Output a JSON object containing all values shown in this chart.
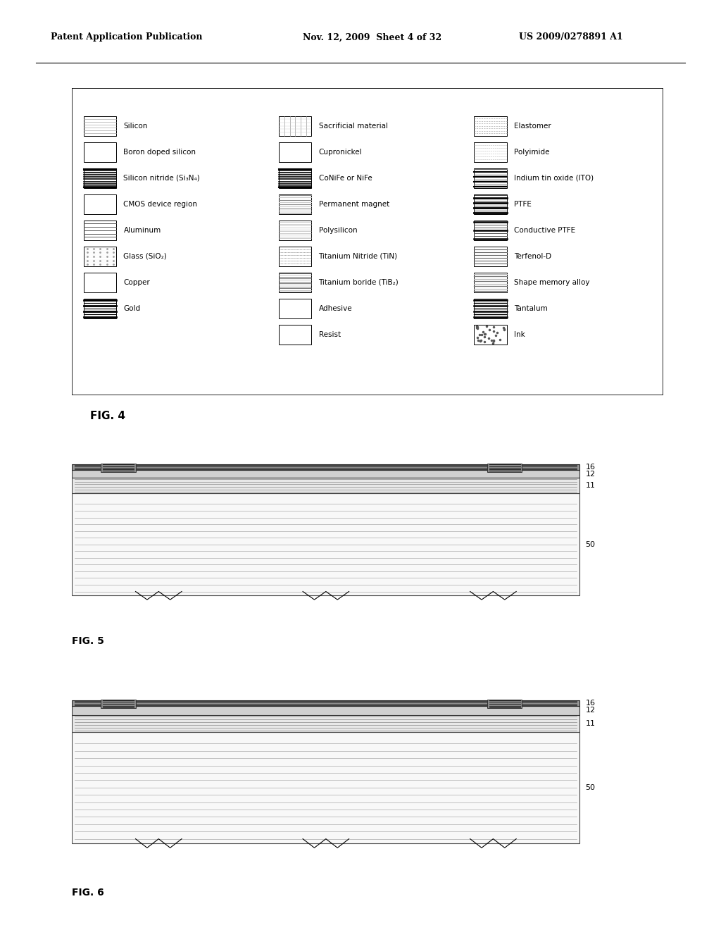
{
  "bg_color": "#ffffff",
  "header_left": "Patent Application Publication",
  "header_mid": "Nov. 12, 2009  Sheet 4 of 32",
  "header_right": "US 2009/0278891 A1",
  "fig4_label": "FIG. 4",
  "fig5_label": "FIG. 5",
  "fig6_label": "FIG. 6",
  "legend_items": [
    {
      "col": 0,
      "row": 0,
      "label": "Silicon",
      "pattern": "hlines_light"
    },
    {
      "col": 0,
      "row": 1,
      "label": "Boron doped silicon",
      "pattern": "blank"
    },
    {
      "col": 0,
      "row": 2,
      "label": "Silicon nitride (Si₃N₄)",
      "pattern": "hlines_dark"
    },
    {
      "col": 0,
      "row": 3,
      "label": "CMOS device region",
      "pattern": "blank_outline"
    },
    {
      "col": 0,
      "row": 4,
      "label": "Aluminum",
      "pattern": "hlines_medium"
    },
    {
      "col": 0,
      "row": 5,
      "label": "Glass (SiO₂)",
      "pattern": "dots"
    },
    {
      "col": 0,
      "row": 6,
      "label": "Copper",
      "pattern": "blank_white"
    },
    {
      "col": 0,
      "row": 7,
      "label": "Gold",
      "pattern": "hlines_dark2"
    },
    {
      "col": 1,
      "row": 0,
      "label": "Sacrificial material",
      "pattern": "vlines_light"
    },
    {
      "col": 1,
      "row": 1,
      "label": "Cupronickel",
      "pattern": "blank"
    },
    {
      "col": 1,
      "row": 2,
      "label": "CoNiFe or NiFe",
      "pattern": "hlines_dark"
    },
    {
      "col": 1,
      "row": 3,
      "label": "Permanent magnet",
      "pattern": "hlines_gray"
    },
    {
      "col": 1,
      "row": 4,
      "label": "Polysilicon",
      "pattern": "hlines_fine"
    },
    {
      "col": 1,
      "row": 5,
      "label": "Titanium Nitride (TiN)",
      "pattern": "hlines_dotted"
    },
    {
      "col": 1,
      "row": 6,
      "label": "Titanium boride (TiB₂)",
      "pattern": "hlines_dense"
    },
    {
      "col": 1,
      "row": 7,
      "label": "Adhesive",
      "pattern": "blank"
    },
    {
      "col": 1,
      "row": 8,
      "label": "Resist",
      "pattern": "blank"
    },
    {
      "col": 2,
      "row": 0,
      "label": "Elastomer",
      "pattern": "hlines_dotted2"
    },
    {
      "col": 2,
      "row": 1,
      "label": "Polyimide",
      "pattern": "hlines_dotted3"
    },
    {
      "col": 2,
      "row": 2,
      "label": "Indium tin oxide (ITO)",
      "pattern": "hlines_dark3"
    },
    {
      "col": 2,
      "row": 3,
      "label": "PTFE",
      "pattern": "hlines_dark4"
    },
    {
      "col": 2,
      "row": 4,
      "label": "Conductive PTFE",
      "pattern": "hlines_dark5"
    },
    {
      "col": 2,
      "row": 5,
      "label": "Terfenol-D",
      "pattern": "hlines_medium2"
    },
    {
      "col": 2,
      "row": 6,
      "label": "Shape memory alloy",
      "pattern": "hlines_gray2"
    },
    {
      "col": 2,
      "row": 7,
      "label": "Tantalum",
      "pattern": "hlines_dark6"
    },
    {
      "col": 2,
      "row": 8,
      "label": "Ink",
      "pattern": "dots2"
    }
  ]
}
